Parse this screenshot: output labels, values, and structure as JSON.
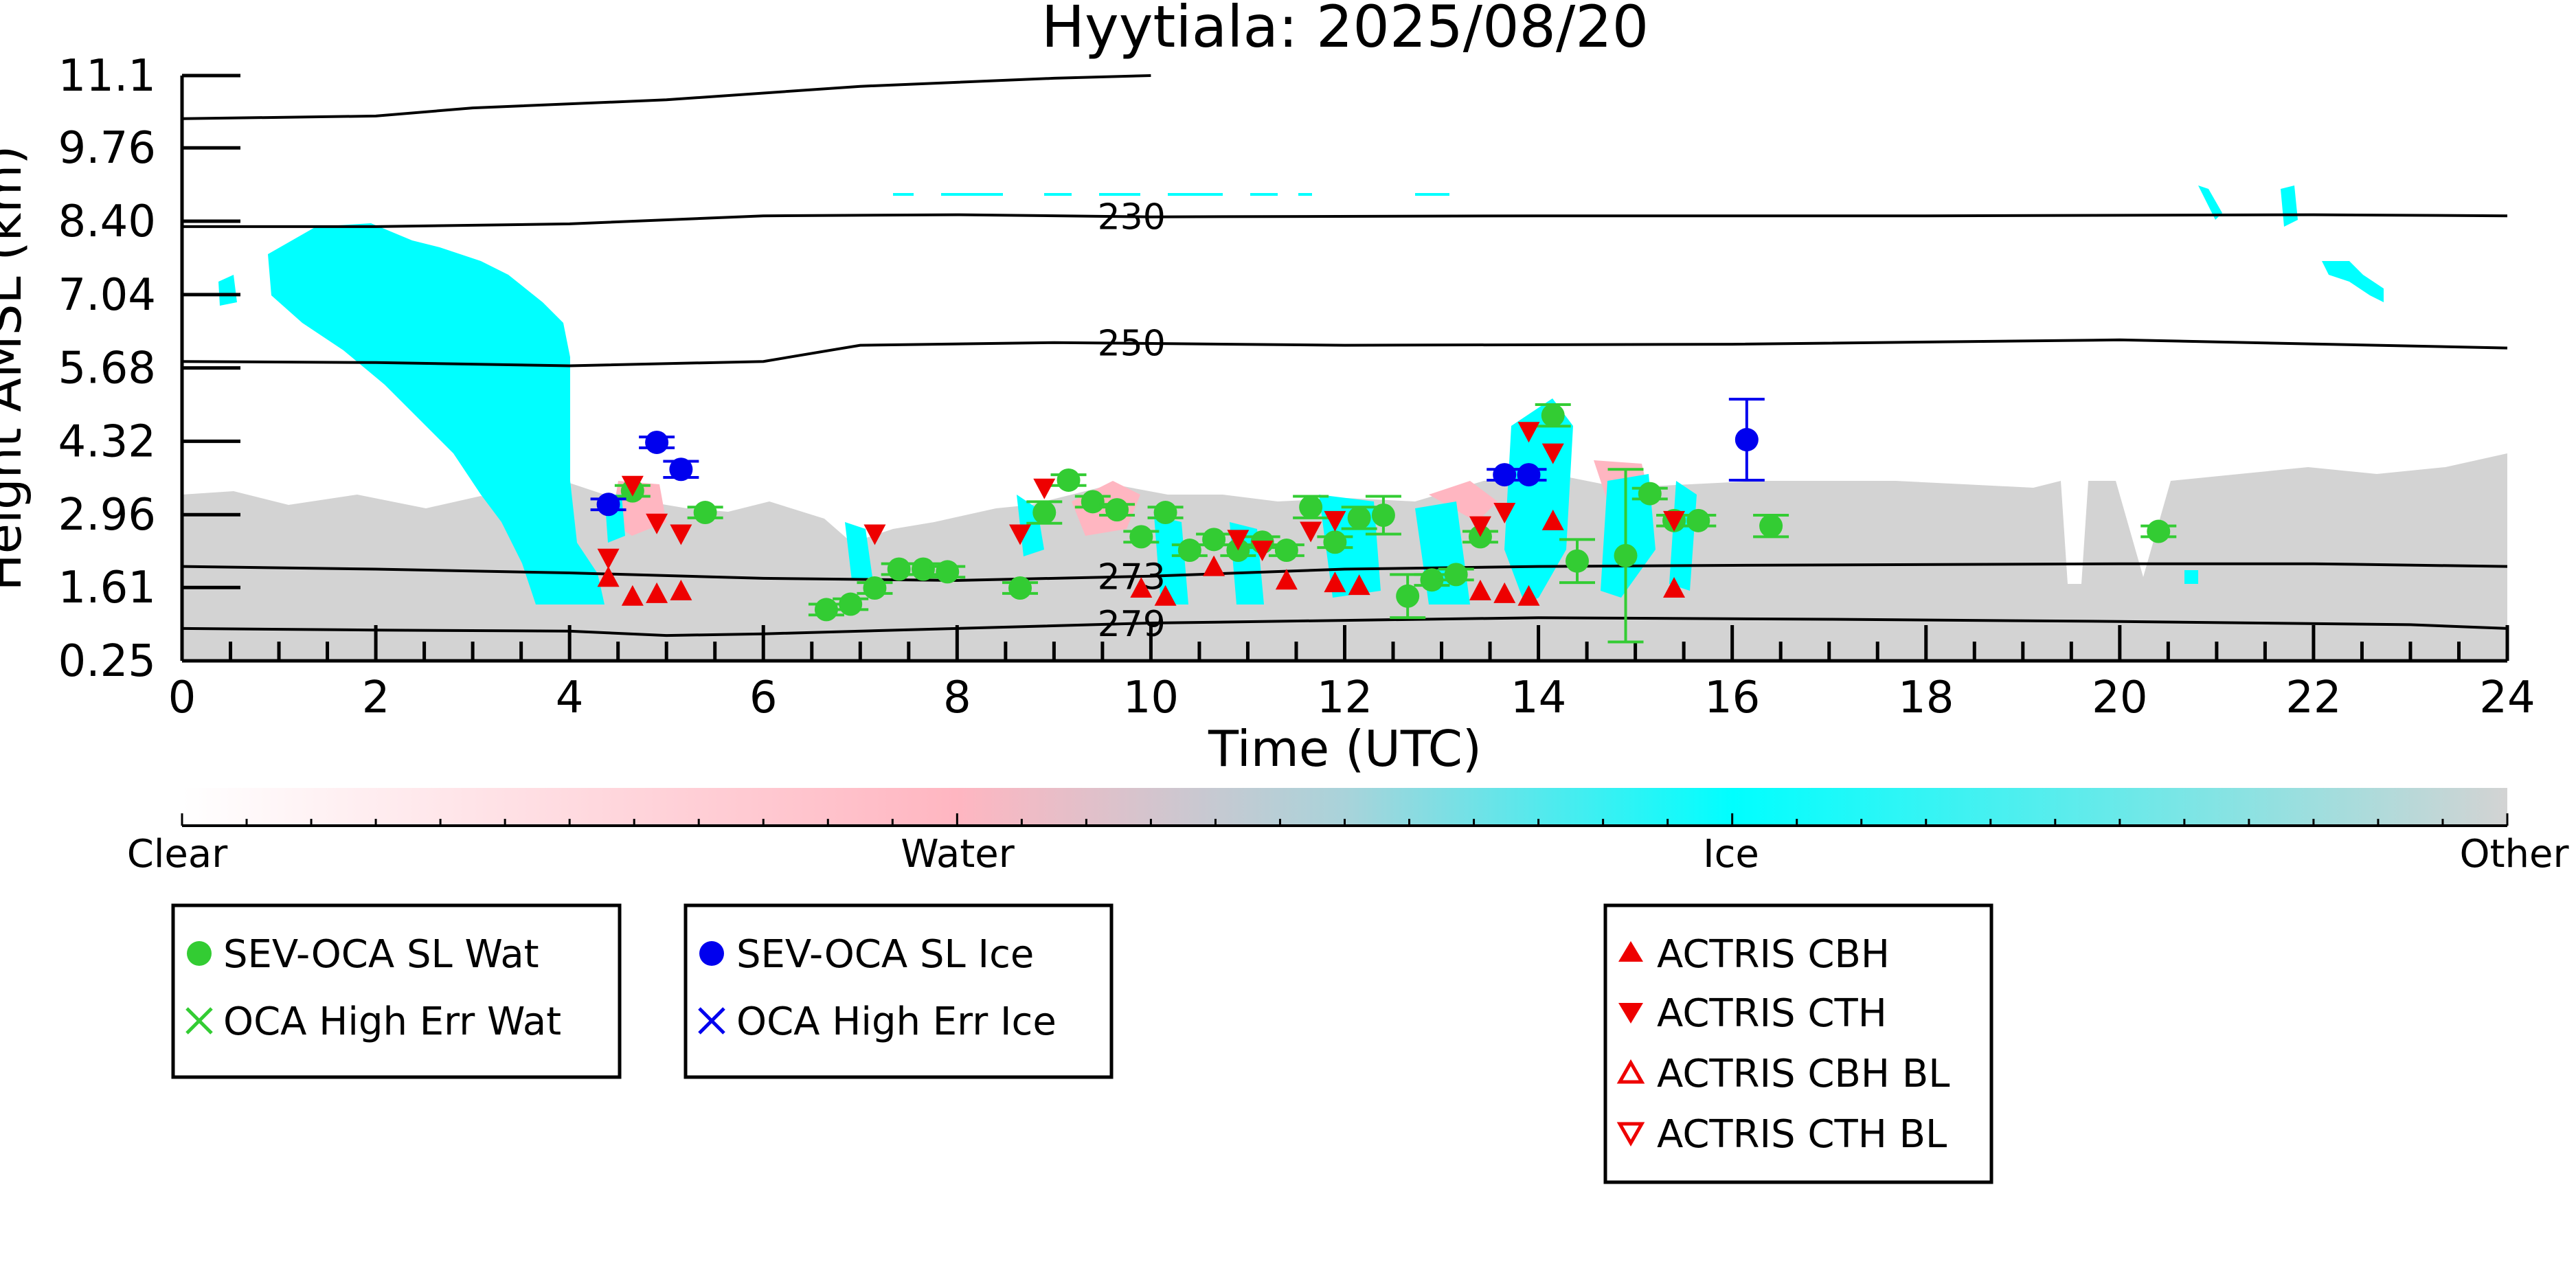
{
  "chart_data": {
    "type": "scatter",
    "title": "Hyytiala: 2025/08/20",
    "xlabel": "Time (UTC)",
    "ylabel": "Height AMSL (km)",
    "xlim": [
      0,
      24
    ],
    "ylim": [
      0.25,
      11.1
    ],
    "x_ticks": [
      "0",
      "2",
      "4",
      "6",
      "8",
      "10",
      "12",
      "14",
      "16",
      "18",
      "20",
      "22",
      "24"
    ],
    "y_ticks": [
      "0.25",
      "1.61",
      "2.96",
      "4.32",
      "5.68",
      "7.04",
      "8.40",
      "9.76",
      "11.1"
    ],
    "y_tick_values": [
      0.25,
      1.61,
      2.96,
      4.32,
      5.68,
      7.04,
      8.4,
      9.76,
      11.1
    ],
    "colors": {
      "clear": "#ffffff",
      "water": "#ffb6c1",
      "ice": "#00ffff",
      "other": "#d3d3d3",
      "sev_wat": "#33cc33",
      "sev_ice": "#0000ee",
      "actris": "#ee0000"
    },
    "colorbar": {
      "labels": [
        "Clear",
        "Water",
        "Ice",
        "Other"
      ]
    },
    "isotherms": [
      {
        "label": "230",
        "label_x": 9.8,
        "points": [
          [
            0,
            8.3
          ],
          [
            2,
            8.3
          ],
          [
            4,
            8.35
          ],
          [
            6,
            8.5
          ],
          [
            8,
            8.52
          ],
          [
            10,
            8.48
          ],
          [
            14,
            8.5
          ],
          [
            18,
            8.5
          ],
          [
            22,
            8.52
          ],
          [
            24,
            8.5
          ]
        ]
      },
      {
        "label": "250",
        "label_x": 9.8,
        "points": [
          [
            0,
            5.8
          ],
          [
            2,
            5.78
          ],
          [
            4,
            5.72
          ],
          [
            6,
            5.8
          ],
          [
            7,
            6.1
          ],
          [
            9,
            6.15
          ],
          [
            12,
            6.1
          ],
          [
            16,
            6.12
          ],
          [
            20,
            6.2
          ],
          [
            24,
            6.05
          ]
        ]
      },
      {
        "label": "273",
        "label_x": 9.8,
        "points": [
          [
            0,
            2.0
          ],
          [
            2,
            1.95
          ],
          [
            4,
            1.88
          ],
          [
            6,
            1.78
          ],
          [
            8,
            1.74
          ],
          [
            10,
            1.82
          ],
          [
            12,
            1.95
          ],
          [
            14,
            2.0
          ],
          [
            16,
            2.02
          ],
          [
            20,
            2.05
          ],
          [
            22,
            2.05
          ],
          [
            24,
            2.0
          ]
        ]
      },
      {
        "label": "279",
        "label_x": 9.8,
        "points": [
          [
            0,
            0.85
          ],
          [
            2,
            0.82
          ],
          [
            4,
            0.8
          ],
          [
            5,
            0.72
          ],
          [
            6,
            0.75
          ],
          [
            8,
            0.85
          ],
          [
            10,
            0.95
          ],
          [
            12,
            1.0
          ],
          [
            14,
            1.05
          ],
          [
            17,
            1.02
          ],
          [
            20,
            0.98
          ],
          [
            23,
            0.92
          ],
          [
            24,
            0.85
          ]
        ]
      },
      {
        "label": "",
        "label_x": null,
        "points": [
          [
            0,
            10.3
          ],
          [
            2,
            10.35
          ],
          [
            3,
            10.5
          ],
          [
            5,
            10.65
          ],
          [
            7,
            10.9
          ],
          [
            9,
            11.05
          ],
          [
            10,
            11.1
          ]
        ]
      }
    ],
    "series": [
      {
        "name": "SEV-OCA SL Wat",
        "marker": "circle",
        "color": "#33cc33",
        "points": [
          {
            "x": 4.65,
            "y": 3.4,
            "err": 0.1
          },
          {
            "x": 5.4,
            "y": 3.0,
            "err": 0.1
          },
          {
            "x": 6.65,
            "y": 1.2,
            "err": 0.1
          },
          {
            "x": 6.9,
            "y": 1.3,
            "err": 0.1
          },
          {
            "x": 7.15,
            "y": 1.6,
            "err": 0.1
          },
          {
            "x": 7.4,
            "y": 1.95,
            "err": 0.1
          },
          {
            "x": 7.65,
            "y": 1.95,
            "err": 0.1
          },
          {
            "x": 7.9,
            "y": 1.9,
            "err": 0.1
          },
          {
            "x": 8.65,
            "y": 1.6,
            "err": 0.1
          },
          {
            "x": 8.9,
            "y": 3.0,
            "err": 0.2
          },
          {
            "x": 9.15,
            "y": 3.6,
            "err": 0.1
          },
          {
            "x": 9.4,
            "y": 3.2,
            "err": 0.1
          },
          {
            "x": 9.65,
            "y": 3.05,
            "err": 0.1
          },
          {
            "x": 9.9,
            "y": 2.55,
            "err": 0.1
          },
          {
            "x": 10.15,
            "y": 3.0,
            "err": 0.1
          },
          {
            "x": 10.4,
            "y": 2.3,
            "err": 0.1
          },
          {
            "x": 10.65,
            "y": 2.5,
            "err": 0.1
          },
          {
            "x": 10.9,
            "y": 2.3,
            "err": 0.1
          },
          {
            "x": 11.15,
            "y": 2.45,
            "err": 0.1
          },
          {
            "x": 11.4,
            "y": 2.3,
            "err": 0.1
          },
          {
            "x": 11.65,
            "y": 3.1,
            "err": 0.2
          },
          {
            "x": 11.9,
            "y": 2.45,
            "err": 0.1
          },
          {
            "x": 12.15,
            "y": 2.9,
            "err": 0.2
          },
          {
            "x": 12.4,
            "y": 2.95,
            "err": 0.35
          },
          {
            "x": 12.65,
            "y": 1.45,
            "err": 0.4
          },
          {
            "x": 12.9,
            "y": 1.75,
            "err": 0.1
          },
          {
            "x": 13.15,
            "y": 1.85,
            "err": 0.1
          },
          {
            "x": 13.4,
            "y": 2.55,
            "err": 0.1
          },
          {
            "x": 14.15,
            "y": 4.8,
            "err": 0.2
          },
          {
            "x": 14.4,
            "y": 2.1,
            "err": 0.4
          },
          {
            "x": 14.9,
            "y": 2.2,
            "err": 1.6
          },
          {
            "x": 15.15,
            "y": 3.35,
            "err": 0.1
          },
          {
            "x": 15.4,
            "y": 2.85,
            "err": 0.1
          },
          {
            "x": 15.65,
            "y": 2.85,
            "err": 0.1
          },
          {
            "x": 16.4,
            "y": 2.75,
            "err": 0.2
          },
          {
            "x": 20.4,
            "y": 2.65,
            "err": 0.1
          }
        ]
      },
      {
        "name": "OCA High Err Wat",
        "marker": "x",
        "color": "#33cc33",
        "points": []
      },
      {
        "name": "SEV-OCA SL Ice",
        "marker": "circle",
        "color": "#0000ee",
        "points": [
          {
            "x": 4.4,
            "y": 3.15,
            "err": 0.1
          },
          {
            "x": 4.9,
            "y": 4.3,
            "err": 0.1
          },
          {
            "x": 5.15,
            "y": 3.8,
            "err": 0.15
          },
          {
            "x": 13.65,
            "y": 3.7,
            "err": 0.1
          },
          {
            "x": 13.9,
            "y": 3.7,
            "err": 0.1
          },
          {
            "x": 16.15,
            "y": 4.35,
            "err": 0.75
          }
        ]
      },
      {
        "name": "OCA High Err Ice",
        "marker": "x",
        "color": "#0000ee",
        "points": []
      },
      {
        "name": "ACTRIS CBH",
        "marker": "triangle-up",
        "color": "#ee0000",
        "points": [
          {
            "x": 4.4,
            "y": 1.8
          },
          {
            "x": 4.65,
            "y": 1.45
          },
          {
            "x": 4.9,
            "y": 1.5
          },
          {
            "x": 5.15,
            "y": 1.55
          },
          {
            "x": 9.9,
            "y": 1.6
          },
          {
            "x": 10.15,
            "y": 1.45
          },
          {
            "x": 10.65,
            "y": 2.0
          },
          {
            "x": 11.4,
            "y": 1.75
          },
          {
            "x": 11.9,
            "y": 1.7
          },
          {
            "x": 12.15,
            "y": 1.65
          },
          {
            "x": 13.4,
            "y": 1.55
          },
          {
            "x": 13.65,
            "y": 1.5
          },
          {
            "x": 13.9,
            "y": 1.45
          },
          {
            "x": 14.15,
            "y": 2.85
          },
          {
            "x": 15.4,
            "y": 1.6
          }
        ]
      },
      {
        "name": "ACTRIS CTH",
        "marker": "triangle-down",
        "color": "#ee0000",
        "points": [
          {
            "x": 4.4,
            "y": 2.15
          },
          {
            "x": 4.65,
            "y": 3.5
          },
          {
            "x": 4.9,
            "y": 2.8
          },
          {
            "x": 5.15,
            "y": 2.6
          },
          {
            "x": 7.15,
            "y": 2.6
          },
          {
            "x": 8.65,
            "y": 2.6
          },
          {
            "x": 8.9,
            "y": 3.45
          },
          {
            "x": 10.9,
            "y": 2.5
          },
          {
            "x": 11.15,
            "y": 2.3
          },
          {
            "x": 11.65,
            "y": 2.65
          },
          {
            "x": 11.9,
            "y": 2.85
          },
          {
            "x": 13.4,
            "y": 2.75
          },
          {
            "x": 13.65,
            "y": 3.0
          },
          {
            "x": 13.9,
            "y": 4.5
          },
          {
            "x": 14.15,
            "y": 4.1
          },
          {
            "x": 15.4,
            "y": 2.85
          }
        ]
      },
      {
        "name": "ACTRIS CBH BL",
        "marker": "triangle-up-open",
        "color": "#ee0000",
        "points": []
      },
      {
        "name": "ACTRIS CTH BL",
        "marker": "triangle-down-open",
        "color": "#ee0000",
        "points": []
      }
    ],
    "legends": [
      {
        "entries": [
          "SEV-OCA SL Wat",
          "OCA High Err Wat"
        ]
      },
      {
        "entries": [
          "SEV-OCA SL Ice",
          "OCA High Err Ice"
        ]
      },
      {
        "entries": [
          "ACTRIS CBH",
          "ACTRIS CTH",
          "ACTRIS CBH BL",
          "ACTRIS CTH BL"
        ]
      }
    ]
  }
}
